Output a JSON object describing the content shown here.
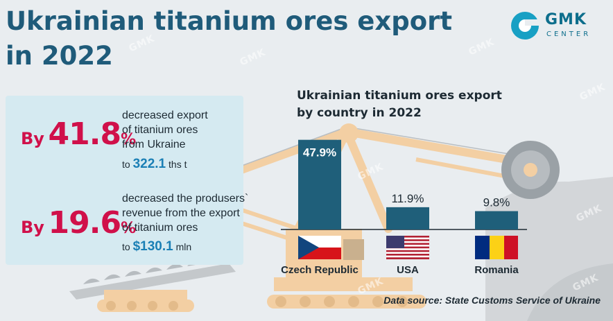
{
  "title_line1": "Ukrainian titanium ores export",
  "title_line2": "in 2022",
  "logo": {
    "main": "GMK",
    "sub": "CENTER"
  },
  "watermark_text": "GMK",
  "stats": [
    {
      "by_word": "By",
      "number": "41.8",
      "percent": "%",
      "desc": [
        "decreased export",
        "of titanium ores",
        "from Ukraine"
      ],
      "to_word": "to",
      "value": "322.1",
      "unit": "ths t"
    },
    {
      "by_word": "By",
      "number": "19.6",
      "percent": "%",
      "desc": [
        "decreased the produsers`",
        "revenue from the export",
        "of titanium ores"
      ],
      "to_word": "to",
      "value": "$130.1",
      "unit": "mln"
    }
  ],
  "chart_data": {
    "type": "bar",
    "title": "Ukrainian titanium ores export by country in 2022",
    "title_lines": [
      "Ukrainian titanium ores export",
      "by country in 2022"
    ],
    "categories": [
      "Czech Republic",
      "USA",
      "Romania"
    ],
    "values": [
      47.9,
      11.9,
      9.8
    ],
    "value_labels": [
      "47.9%",
      "11.9%",
      "9.8%"
    ],
    "ylim": [
      0,
      50
    ],
    "grid": false,
    "bar_color": "#1f5f7a"
  },
  "source": "Data source: State Customs Service of  Ukraine",
  "colors": {
    "title": "#1f5b7a",
    "accent": "#d0104a",
    "value": "#1a7fb5",
    "panel": "#d5eaf1",
    "machine": "#f3cfa3"
  }
}
